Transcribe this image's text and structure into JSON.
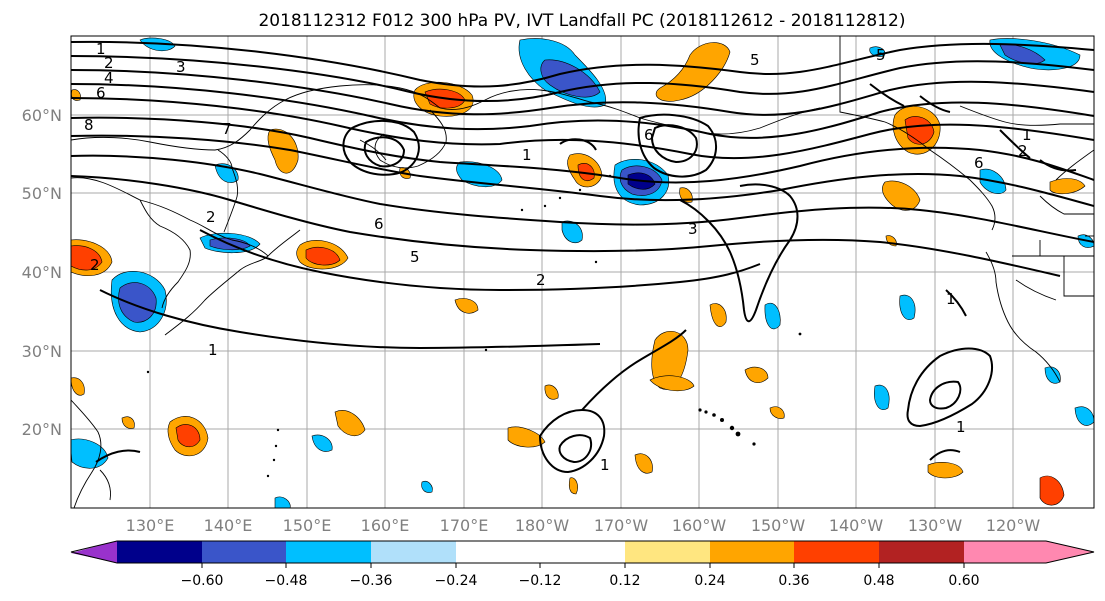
{
  "title": "2018112312 F012 300 hPa PV, IVT Landfall PC (2018112612 - 2018112812)",
  "lat_ticks": [
    "60°N",
    "50°N",
    "40°N",
    "30°N",
    "20°N"
  ],
  "lon_ticks": [
    "130°E",
    "140°E",
    "150°E",
    "160°E",
    "170°E",
    "180°W",
    "170°W",
    "160°W",
    "150°W",
    "140°W",
    "130°W",
    "120°W"
  ],
  "colorbar": {
    "ticks": [
      "−0.60",
      "−0.48",
      "−0.36",
      "−0.24",
      "−0.12",
      "0.12",
      "0.24",
      "0.36",
      "0.48",
      "0.60"
    ],
    "colors": [
      "#9932cc",
      "#00008b",
      "#3a55c9",
      "#00bfff",
      "#b0e0fa",
      "#ffffff",
      "#ffe680",
      "#ffa500",
      "#ff4000",
      "#b22222",
      "#ff88b0"
    ]
  },
  "contour_labels": [
    "1",
    "2",
    "3",
    "4",
    "5",
    "6",
    "7",
    "8"
  ],
  "chart_data": {
    "type": "map",
    "variables": [
      "300 hPa PV (contours)",
      "IVT Landfall PC (shaded)"
    ],
    "lat_range": [
      "10°N",
      "70°N"
    ],
    "lon_range": [
      "120°E",
      "110°W"
    ],
    "gridlines": true
  }
}
